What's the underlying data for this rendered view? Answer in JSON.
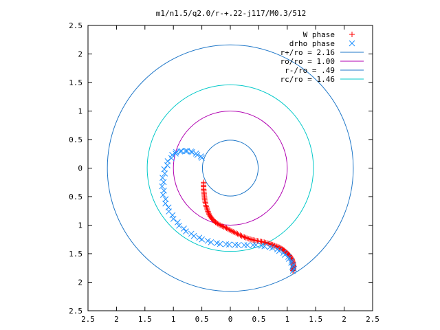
{
  "chart_data": {
    "type": "scatter",
    "title": "m1/n1.5/q2.0/r-+.22-j117/M0.3/512",
    "xlabel": "",
    "ylabel": "",
    "xlim": [
      -2.5,
      2.5
    ],
    "ylim": [
      -2.5,
      2.5
    ],
    "x_ticks": [
      "2.5",
      "2",
      "1.5",
      "1",
      "0.5",
      "0",
      "0.5",
      "1",
      "1.5",
      "2",
      "2.5"
    ],
    "y_ticks": [
      "2.5",
      "2",
      "1.5",
      "1",
      "0.5",
      "0",
      "0.5",
      "1",
      "1.5",
      "2",
      "2.5"
    ],
    "grid": false,
    "legend_position": "top-right",
    "series": [
      {
        "name": "W phase",
        "kind": "points",
        "marker": "plus",
        "color": "#ff0000",
        "x": [
          -0.47,
          -0.47,
          -0.46,
          -0.45,
          -0.43,
          -0.4,
          -0.37,
          -0.32,
          -0.26,
          -0.18,
          -0.09,
          0.0,
          0.1,
          0.2,
          0.3,
          0.4,
          0.5,
          0.6,
          0.7,
          0.78,
          0.86,
          0.93,
          0.99,
          1.04,
          1.08,
          1.1,
          1.11,
          1.11,
          1.1
        ],
        "y": [
          -0.25,
          -0.35,
          -0.45,
          -0.55,
          -0.65,
          -0.74,
          -0.82,
          -0.89,
          -0.95,
          -1.0,
          -1.04,
          -1.09,
          -1.14,
          -1.19,
          -1.23,
          -1.26,
          -1.28,
          -1.3,
          -1.33,
          -1.36,
          -1.39,
          -1.43,
          -1.48,
          -1.53,
          -1.59,
          -1.65,
          -1.71,
          -1.76,
          -1.8
        ]
      },
      {
        "name": "drho phase",
        "kind": "points",
        "marker": "cross",
        "color": "#1e90ff",
        "x": [
          -0.5,
          -0.58,
          -0.67,
          -0.76,
          -0.86,
          -0.95,
          -1.02,
          -1.1,
          -1.16,
          -1.19,
          -1.2,
          -1.18,
          -1.14,
          -1.08,
          -1.0,
          -0.9,
          -0.78,
          -0.64,
          -0.5,
          -0.34,
          -0.18,
          -0.02,
          0.14,
          0.3,
          0.45,
          0.6,
          0.74,
          0.86,
          0.96,
          1.03,
          1.07,
          1.09,
          1.1
        ],
        "y": [
          0.18,
          0.23,
          0.28,
          0.3,
          0.3,
          0.28,
          0.23,
          0.12,
          -0.02,
          -0.17,
          -0.32,
          -0.47,
          -0.62,
          -0.76,
          -0.89,
          -1.01,
          -1.11,
          -1.19,
          -1.25,
          -1.3,
          -1.33,
          -1.34,
          -1.35,
          -1.35,
          -1.35,
          -1.37,
          -1.4,
          -1.45,
          -1.52,
          -1.59,
          -1.66,
          -1.73,
          -1.8
        ]
      },
      {
        "name": "r+/ro = 2.16",
        "kind": "circle",
        "radius": 2.16,
        "color": "#1f77c8"
      },
      {
        "name": "ro/ro = 1.00",
        "kind": "circle",
        "radius": 1.0,
        "color": "#b000b0"
      },
      {
        "name": "r-/ro = .49",
        "kind": "circle",
        "radius": 0.49,
        "color": "#1f77c8"
      },
      {
        "name": "rc/ro = 1.46",
        "kind": "circle",
        "radius": 1.46,
        "color": "#00c8c8"
      }
    ]
  }
}
